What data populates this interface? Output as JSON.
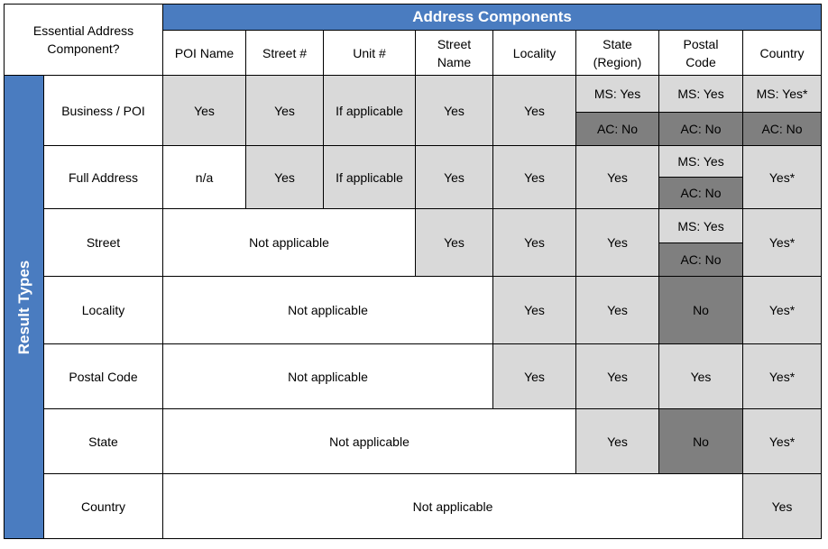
{
  "corner_label_line1": "Essential Address",
  "corner_label_line2": "Component?",
  "group_header": "Address Components",
  "side_label": "Result Types",
  "columns": [
    {
      "line1": "POI Name",
      "line2": ""
    },
    {
      "line1": "Street #",
      "line2": ""
    },
    {
      "line1": "Unit #",
      "line2": ""
    },
    {
      "line1": "Street",
      "line2": "Name"
    },
    {
      "line1": "Locality",
      "line2": ""
    },
    {
      "line1": "State",
      "line2": "(Region)"
    },
    {
      "line1": "Postal",
      "line2": "Code"
    },
    {
      "line1": "Country",
      "line2": ""
    }
  ],
  "rows": {
    "business_poi": {
      "label": "Business / POI",
      "poi_name": "Yes",
      "street_num": "Yes",
      "unit_num": "If applicable",
      "street_name": "Yes",
      "locality": "Yes",
      "state_ms": "MS: Yes",
      "state_ac": "AC: No",
      "postal_ms": "MS: Yes",
      "postal_ac": "AC: No",
      "country_ms": "MS: Yes*",
      "country_ac": "AC: No"
    },
    "full_address": {
      "label": "Full Address",
      "poi_name": "n/a",
      "street_num": "Yes",
      "unit_num": "If applicable",
      "street_name": "Yes",
      "locality": "Yes",
      "state": "Yes",
      "postal_ms": "MS: Yes",
      "postal_ac": "AC: No",
      "country": "Yes*"
    },
    "street": {
      "label": "Street",
      "not_applicable": "Not applicable",
      "street_name": "Yes",
      "locality": "Yes",
      "state": "Yes",
      "postal_ms": "MS: Yes",
      "postal_ac": "AC: No",
      "country": "Yes*"
    },
    "locality": {
      "label": "Locality",
      "not_applicable": "Not applicable",
      "locality": "Yes",
      "state": "Yes",
      "postal": "No",
      "country": "Yes*"
    },
    "postal_code": {
      "label": "Postal Code",
      "not_applicable": "Not applicable",
      "locality": "Yes",
      "state": "Yes",
      "postal": "Yes",
      "country": "Yes*"
    },
    "state": {
      "label": "State",
      "not_applicable": "Not applicable",
      "state": "Yes",
      "postal": "No",
      "country": "Yes*"
    },
    "country": {
      "label": "Country",
      "not_applicable": "Not applicable",
      "country": "Yes"
    }
  }
}
